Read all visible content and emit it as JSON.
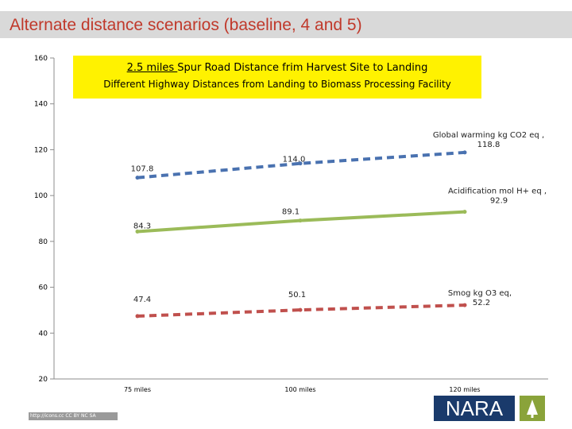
{
  "slide": {
    "title": "Alternate distance scenarios (baseline, 4 and 5)",
    "callout_line1_underlined": "2.5 miles ",
    "callout_line1_rest": "Spur Road Distance frim Harvest Site to Landing",
    "callout_line2": "Different Highway Distances from Landing to Biomass Processing Facility",
    "logo_text": "NARA",
    "license_text": "http://icons.cc CC BY NC SA"
  },
  "chart_data": {
    "type": "line",
    "categories": [
      "75 miles",
      "100 miles",
      "120 miles"
    ],
    "ylim": [
      20,
      160
    ],
    "yticks": [
      20,
      40,
      60,
      80,
      100,
      120,
      140,
      160
    ],
    "grid": false,
    "series": [
      {
        "name": "Global warming kg CO2 eq ,",
        "values": [
          107.8,
          114.0,
          118.8
        ],
        "labels": [
          "107.8",
          "114.0",
          "118.8"
        ],
        "color": "#4a72b0",
        "dash": "dashed"
      },
      {
        "name": "Acidification mol H+ eq ,",
        "values": [
          84.3,
          89.1,
          92.9
        ],
        "labels": [
          "84.3",
          "89.1",
          "92.9"
        ],
        "color": "#9bbb59",
        "dash": "solid"
      },
      {
        "name": "Smog kg O3 eq,",
        "values": [
          47.4,
          50.1,
          52.2
        ],
        "labels": [
          "47.4",
          "50.1",
          "52.2"
        ],
        "color": "#c0504d",
        "dash": "dashed"
      }
    ]
  }
}
